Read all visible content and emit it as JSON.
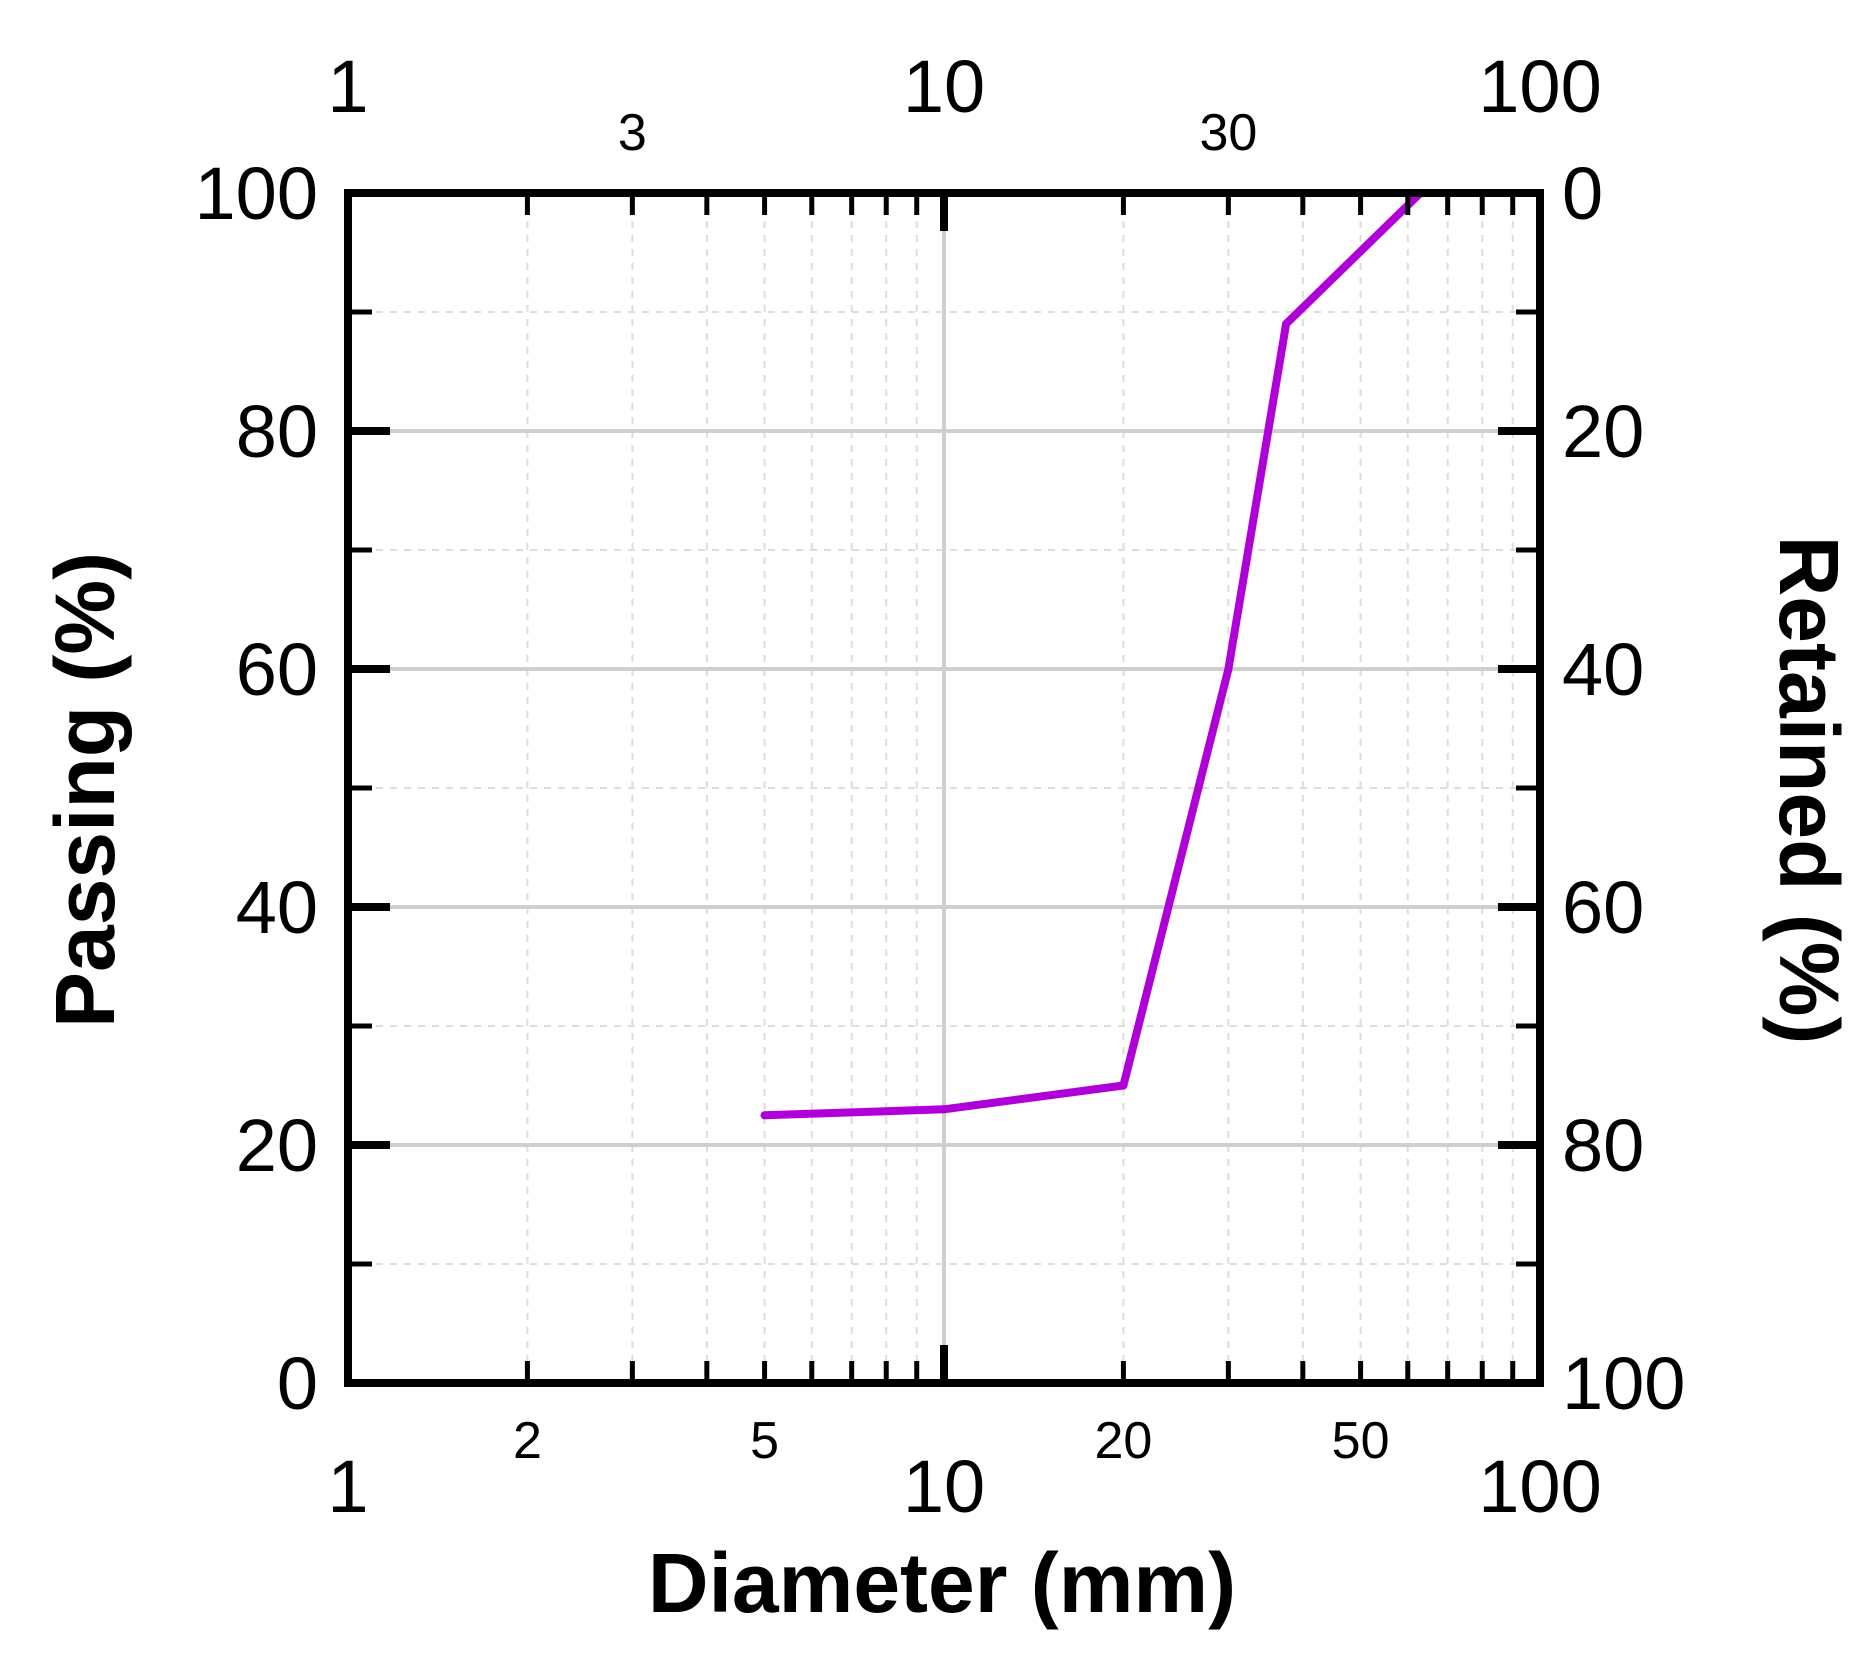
{
  "chart_data": {
    "type": "line",
    "title": "",
    "xlabel": "Diameter (mm)",
    "ylabel": "Passing (%)",
    "y2label": "Retained (%)",
    "xscale": "log",
    "xlim": [
      1,
      100
    ],
    "ylim": [
      0,
      100
    ],
    "y2lim": [
      100,
      0
    ],
    "grid": true,
    "legend": "none",
    "line_color": "#b000d8",
    "x_major_ticks": [
      {
        "value": 1,
        "label": "1"
      },
      {
        "value": 10,
        "label": "10"
      },
      {
        "value": 100,
        "label": "100"
      }
    ],
    "x_bottom_minor_labels": [
      {
        "value": 2,
        "label": "2"
      },
      {
        "value": 5,
        "label": "5"
      },
      {
        "value": 20,
        "label": "20"
      },
      {
        "value": 50,
        "label": "50"
      }
    ],
    "x_top_minor_labels": [
      {
        "value": 3,
        "label": "3"
      },
      {
        "value": 30,
        "label": "30"
      }
    ],
    "y_ticks": [
      {
        "value": 0,
        "label": "0"
      },
      {
        "value": 20,
        "label": "20"
      },
      {
        "value": 40,
        "label": "40"
      },
      {
        "value": 60,
        "label": "60"
      },
      {
        "value": 80,
        "label": "80"
      },
      {
        "value": 100,
        "label": "100"
      }
    ],
    "y2_ticks": [
      {
        "value": 0,
        "label": "100"
      },
      {
        "value": 20,
        "label": "80"
      },
      {
        "value": 40,
        "label": "60"
      },
      {
        "value": 60,
        "label": "40"
      },
      {
        "value": 80,
        "label": "20"
      },
      {
        "value": 100,
        "label": "0"
      }
    ],
    "series": [
      {
        "x": [
          5,
          10,
          20,
          30,
          37.5,
          63,
          75
        ],
        "y": [
          22.5,
          23,
          25,
          60,
          89,
          100,
          100
        ]
      }
    ]
  }
}
